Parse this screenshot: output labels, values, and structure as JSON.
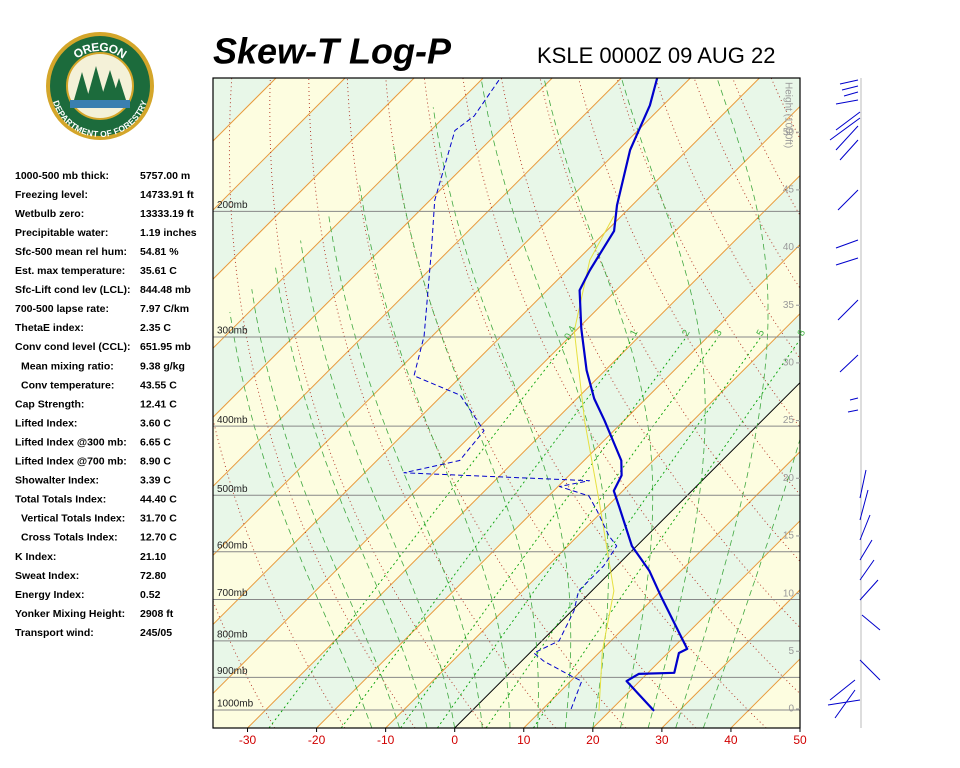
{
  "logo": {
    "top": "OREGON",
    "bottom": "DEPARTMENT OF FORESTRY"
  },
  "indices": {
    "rows": [
      [
        "1000-500 mb thick:",
        "5757.00 m"
      ],
      [
        "Freezing level:",
        "14733.91 ft"
      ],
      [
        "Wetbulb zero:",
        "13333.19 ft"
      ],
      [
        "Precipitable water:",
        "1.19 inches"
      ],
      [
        "Sfc-500 mean rel hum:",
        "54.81 %"
      ],
      [
        "Est. max temperature:",
        "35.61 C"
      ],
      [
        "Sfc-Lift cond lev (LCL):",
        "844.48 mb"
      ],
      [
        "700-500 lapse rate:",
        "7.97 C/km"
      ],
      [
        "ThetaE index:",
        "2.35 C"
      ],
      [
        "Conv cond level (CCL):",
        "651.95 mb"
      ],
      [
        "Mean mixing ratio:",
        "9.38 g/kg"
      ],
      [
        "Conv temperature:",
        "43.55 C"
      ],
      [
        "Cap Strength:",
        "12.41 C"
      ],
      [
        "Lifted Index:",
        "3.60 C"
      ],
      [
        "Lifted Index @300 mb:",
        "6.65 C"
      ],
      [
        "Lifted Index @700 mb:",
        "8.90 C"
      ],
      [
        "Showalter Index:",
        "3.39 C"
      ],
      [
        "Total Totals Index:",
        "44.40 C"
      ],
      [
        "Vertical Totals Index:",
        "31.70 C"
      ],
      [
        "Cross Totals Index:",
        "12.70 C"
      ],
      [
        "K Index:",
        "21.10"
      ],
      [
        "Sweat Index:",
        "72.80"
      ],
      [
        "Energy Index:",
        "0.52"
      ],
      [
        "Yonker Mixing Height:",
        "2908 ft"
      ],
      [
        "Transport wind:",
        "245/05"
      ]
    ]
  },
  "chart_data": {
    "type": "skewt",
    "title": "Skew-T Log-P",
    "subtitle": "KSLE 0000Z 09 AUG 22",
    "xlim": [
      -35,
      50
    ],
    "xticks": [
      -30,
      -20,
      -10,
      0,
      10,
      20,
      30,
      40,
      50
    ],
    "ylim": [
      1060,
      130
    ],
    "log_y": true,
    "yticks": [
      {
        "value": 200,
        "label": "200mb"
      },
      {
        "value": 300,
        "label": "300mb"
      },
      {
        "value": 400,
        "label": "400mb"
      },
      {
        "value": 500,
        "label": "500mb"
      },
      {
        "value": 600,
        "label": "600mb"
      },
      {
        "value": 700,
        "label": "700mb"
      },
      {
        "value": 800,
        "label": "800mb"
      },
      {
        "value": 900,
        "label": "900mb"
      },
      {
        "value": 1000,
        "label": "1000mb"
      }
    ],
    "y2label": "Height (1000ft)",
    "y2lim": [
      -1.65,
      54.7
    ],
    "y2ticks": [
      0,
      5,
      10,
      15,
      20,
      25,
      30,
      35,
      40,
      45,
      50
    ],
    "mixing_ratio_lines": [
      0.4,
      1,
      2,
      3,
      5,
      8
    ],
    "series": [
      {
        "color": "#0000cc",
        "style": "solid",
        "pressure": [
          1003,
          911,
          890,
          887,
          832,
          821,
          694,
          638,
          589,
          520,
          493,
          469,
          447,
          393,
          366,
          334,
          292,
          258,
          242,
          213,
          196,
          164,
          142,
          130
        ],
        "temperature": [
          26.4,
          18.1,
          18.8,
          23.8,
          21.6,
          22.2,
          10.9,
          5.4,
          -0.7,
          -8.1,
          -11.3,
          -12.4,
          -14.6,
          -22.8,
          -27.5,
          -32.7,
          -39.5,
          -45.3,
          -46.7,
          -48.9,
          -52.2,
          -58.3,
          -61.9,
          -64.8
        ]
      },
      {
        "color": "#0000cc",
        "style": "dashed",
        "pressure": [
          997,
          911,
          896,
          854,
          832,
          800,
          726,
          681,
          628,
          589,
          570,
          526,
          501,
          486,
          477,
          465,
          447,
          406,
          362,
          340,
          299,
          227,
          193,
          154,
          147,
          130
        ],
        "temperature": [
          14.1,
          11.6,
          9.3,
          3.2,
          0.6,
          2.5,
          0.3,
          -1.9,
          -1.9,
          -2.9,
          -5.5,
          -10.8,
          -14.2,
          -19.8,
          -16.3,
          -44.3,
          -38.0,
          -38.8,
          -47.4,
          -56.9,
          -61.2,
          -72.5,
          -79.3,
          -86.5,
          -85.8,
          -87.5
        ]
      },
      {
        "color": "#e6e040",
        "style": "thin",
        "pressure": [
          1003,
          826,
          681,
          509,
          393,
          294,
          234,
          203
        ],
        "temperature": [
          18.4,
          10.2,
          3.2,
          -12.0,
          -25.7,
          -40.2,
          -48.2,
          -51.1
        ]
      }
    ]
  }
}
